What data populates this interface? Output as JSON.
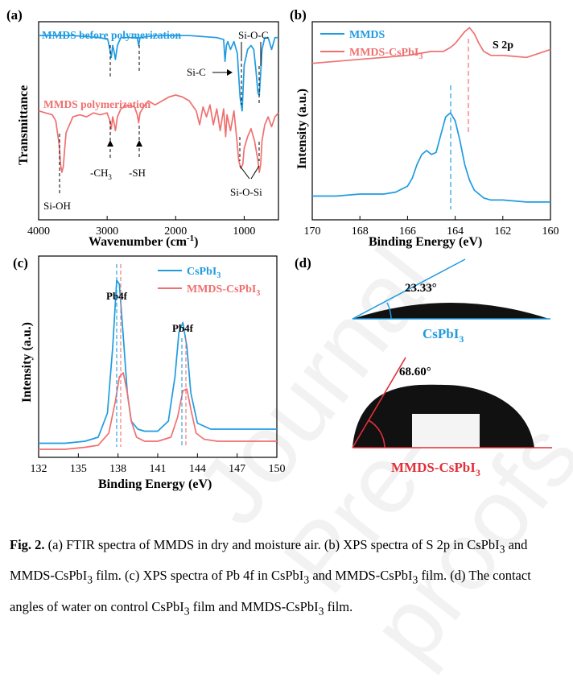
{
  "chart_data": [
    {
      "panel": "(a)",
      "type": "line",
      "xlabel": "Wavenumber (cm",
      "xlabel_sup": "-1",
      "xlabel_tail": ")",
      "ylabel": "Transmittance",
      "xlim": [
        4000,
        500
      ],
      "x_ticks": [
        "4000",
        "3000",
        "2000",
        "1000"
      ],
      "series": [
        {
          "name": "MMDS before polymerization",
          "color": "#1f9be0",
          "x": [
            4000,
            3500,
            3100,
            2990,
            2960,
            2940,
            2920,
            2900,
            2880,
            2850,
            2800,
            2560,
            2540,
            2520,
            2300,
            1800,
            1400,
            1300,
            1280,
            1260,
            1240,
            1200,
            1150,
            1100,
            1060,
            1030,
            1000,
            950,
            900,
            860,
            830,
            800,
            780,
            760,
            740,
            700,
            650,
            600,
            550,
            500
          ],
          "y": [
            0.93,
            0.93,
            0.92,
            0.91,
            0.86,
            0.82,
            0.88,
            0.85,
            0.81,
            0.88,
            0.92,
            0.92,
            0.88,
            0.92,
            0.93,
            0.93,
            0.92,
            0.91,
            0.8,
            0.88,
            0.9,
            0.86,
            0.9,
            0.84,
            0.62,
            0.55,
            0.78,
            0.86,
            0.88,
            0.86,
            0.76,
            0.64,
            0.63,
            0.74,
            0.86,
            0.92,
            0.92,
            0.86,
            0.92,
            0.92
          ]
        },
        {
          "name": "MMDS  polymerization",
          "color": "#f07070",
          "x": [
            4000,
            3900,
            3800,
            3750,
            3700,
            3680,
            3660,
            3640,
            3620,
            3600,
            3550,
            3500,
            3400,
            3300,
            3200,
            3100,
            3000,
            2960,
            2940,
            2920,
            2900,
            2880,
            2850,
            2800,
            2700,
            2600,
            2560,
            2540,
            2520,
            2450,
            2400,
            2300,
            2200,
            2100,
            2000,
            1900,
            1800,
            1700,
            1650,
            1600,
            1550,
            1500,
            1450,
            1400,
            1350,
            1300,
            1270,
            1250,
            1200,
            1150,
            1100,
            1080,
            1050,
            1020,
            1000,
            950,
            900,
            850,
            800,
            780,
            760,
            740,
            700,
            650,
            600,
            550,
            500
          ],
          "y": [
            0.55,
            0.54,
            0.53,
            0.5,
            0.38,
            0.28,
            0.24,
            0.27,
            0.36,
            0.44,
            0.48,
            0.52,
            0.53,
            0.52,
            0.54,
            0.53,
            0.54,
            0.5,
            0.46,
            0.52,
            0.49,
            0.45,
            0.52,
            0.56,
            0.58,
            0.57,
            0.53,
            0.49,
            0.54,
            0.58,
            0.6,
            0.58,
            0.6,
            0.62,
            0.63,
            0.62,
            0.6,
            0.55,
            0.48,
            0.57,
            0.52,
            0.58,
            0.48,
            0.56,
            0.45,
            0.56,
            0.42,
            0.53,
            0.45,
            0.55,
            0.38,
            0.3,
            0.26,
            0.28,
            0.36,
            0.42,
            0.46,
            0.4,
            0.3,
            0.24,
            0.28,
            0.4,
            0.48,
            0.52,
            0.47,
            0.52,
            0.54
          ]
        }
      ],
      "annotations": [
        "Si-O-C",
        "Si-C",
        "Si-OH",
        "-CH",
        "3",
        "-SH",
        "Si-O-Si"
      ]
    },
    {
      "panel": "(b)",
      "type": "line",
      "xlabel": "Binding Energy (eV)",
      "ylabel": "Intensity (a.u.)",
      "xlim": [
        170,
        160
      ],
      "x_ticks": [
        "170",
        "168",
        "166",
        "164",
        "162",
        "160"
      ],
      "series": [
        {
          "name": "MMDS",
          "color": "#1f9be0",
          "x": [
            170,
            169,
            168,
            167,
            166.5,
            166,
            165.8,
            165.6,
            165.4,
            165.2,
            165.0,
            164.8,
            164.6,
            164.4,
            164.2,
            164.0,
            163.8,
            163.6,
            163.4,
            163.2,
            163.0,
            162.8,
            162.5,
            162,
            161,
            160
          ],
          "y": [
            0.12,
            0.12,
            0.13,
            0.13,
            0.14,
            0.17,
            0.21,
            0.28,
            0.33,
            0.35,
            0.33,
            0.34,
            0.43,
            0.52,
            0.54,
            0.5,
            0.4,
            0.28,
            0.2,
            0.15,
            0.13,
            0.11,
            0.1,
            0.1,
            0.09,
            0.09
          ]
        },
        {
          "name": "MMDS-CsPbI3",
          "color": "#f07070",
          "x": [
            170,
            169,
            168,
            167,
            166,
            165.5,
            165,
            164.5,
            164.2,
            164.0,
            163.8,
            163.6,
            163.4,
            163.2,
            163.0,
            162.8,
            162.5,
            162,
            161,
            160.5,
            160
          ],
          "y": [
            0.79,
            0.8,
            0.81,
            0.82,
            0.83,
            0.84,
            0.85,
            0.85,
            0.87,
            0.89,
            0.92,
            0.95,
            0.97,
            0.94,
            0.89,
            0.85,
            0.83,
            0.83,
            0.82,
            0.84,
            0.86
          ]
        }
      ],
      "annotations": [
        "S 2p"
      ]
    },
    {
      "panel": "(c)",
      "type": "line",
      "xlabel": "Binding Energy (eV)",
      "ylabel": "Intensity (a.u.)",
      "xlim": [
        132,
        150
      ],
      "x_ticks": [
        "132",
        "135",
        "138",
        "141",
        "144",
        "147",
        "150"
      ],
      "series": [
        {
          "name": "CsPbI3",
          "color": "#1f9be0",
          "x": [
            132,
            134,
            135.5,
            136.5,
            137.2,
            137.6,
            137.9,
            138.1,
            138.4,
            138.7,
            139.0,
            139.5,
            140,
            141,
            141.8,
            142.3,
            142.6,
            142.9,
            143.2,
            143.5,
            144,
            145,
            146,
            147,
            148,
            150
          ],
          "y": [
            0.07,
            0.07,
            0.08,
            0.1,
            0.22,
            0.55,
            0.88,
            0.86,
            0.6,
            0.32,
            0.18,
            0.14,
            0.13,
            0.13,
            0.18,
            0.4,
            0.62,
            0.67,
            0.55,
            0.32,
            0.17,
            0.14,
            0.14,
            0.14,
            0.14,
            0.14
          ]
        },
        {
          "name": "MMDS-CsPbI3",
          "color": "#f07070",
          "x": [
            132,
            134,
            135.5,
            136.5,
            137.3,
            137.8,
            138.1,
            138.4,
            138.7,
            139.0,
            139.4,
            140,
            141,
            142,
            142.5,
            142.9,
            143.2,
            143.5,
            143.9,
            144.5,
            145.5,
            147,
            150
          ],
          "y": [
            0.04,
            0.04,
            0.05,
            0.06,
            0.12,
            0.28,
            0.4,
            0.42,
            0.32,
            0.18,
            0.1,
            0.08,
            0.08,
            0.1,
            0.2,
            0.33,
            0.34,
            0.24,
            0.12,
            0.09,
            0.08,
            0.08,
            0.08
          ]
        }
      ],
      "annotations": [
        "Pb4f",
        "Pb4f"
      ]
    },
    {
      "panel": "(d)",
      "type": "other",
      "contact_angles": [
        {
          "sample": "CsPbI",
          "sub": "3",
          "angle": 23.33,
          "angle_label": "23.33°"
        },
        {
          "sample": "MMDS-CsPbI",
          "sub": "3",
          "angle": 68.6,
          "angle_label": "68.60°"
        }
      ]
    }
  ],
  "legend": {
    "a1": "MMDS before polymerization",
    "a2": "MMDS  polymerization",
    "b1": "MMDS",
    "b2": "MMDS-CsPbI",
    "b2_sub": "3",
    "c1": "CsPbI",
    "c1_sub": "3",
    "c2": "MMDS-CsPbI",
    "c2_sub": "3"
  },
  "caption": {
    "fig": "Fig. 2.",
    "part1": " (a) FTIR spectra of MMDS in dry and moisture air. (b) XPS spectra of S 2p in CsPbI",
    "sub1": "3",
    "part2": " and MMDS-CsPbI",
    "sub2": "3",
    "part3": " film. (c) XPS spectra of Pb 4f in CsPbI",
    "sub3": "3",
    "part4": " and MMDS-CsPbI",
    "sub4": "3",
    "part5": " film. (d) The contact angles of water on control CsPbI",
    "sub5": "3",
    "part6": " film and MMDS-CsPbI",
    "sub6": "3",
    "part7": " film."
  },
  "watermark": "Journal Pre-proofs",
  "colors": {
    "blue": "#1f9be0",
    "red": "#f07070",
    "dropRed": "#e0303a"
  }
}
